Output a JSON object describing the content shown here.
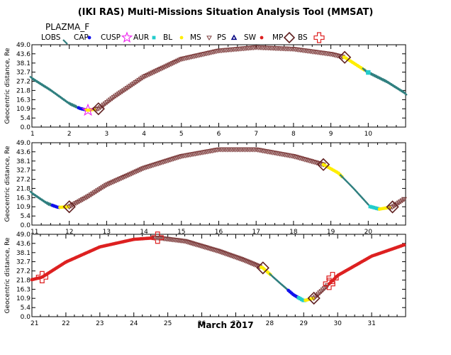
{
  "chart_data": {
    "title": "(IKI RAS) Multi-Missions Situation Analysis Tool (MMSAT)",
    "subtitle": "PLAZMA_F",
    "xlabel": "March 2017",
    "ylabel": "Geocentric distance, Re",
    "yticks": [
      "0.0",
      "5.4",
      "10.9",
      "16.3",
      "21.8",
      "27.2",
      "32.7",
      "38.1",
      "43.6",
      "49.0"
    ],
    "ylim": [
      0,
      49
    ],
    "legend": [
      {
        "label": "LOBS",
        "symbol": "diag",
        "color": "#2f7f7f"
      },
      {
        "label": "CAP",
        "symbol": "dot",
        "color": "#1010ee"
      },
      {
        "label": "CUSP",
        "symbol": "star",
        "color": "#ee22ee"
      },
      {
        "label": "AUR",
        "symbol": "square",
        "color": "#22cccc"
      },
      {
        "label": "BL",
        "symbol": "dot",
        "color": "#ffee00"
      },
      {
        "label": "MS",
        "symbol": "triangle-down",
        "color": "#804040"
      },
      {
        "label": "PS",
        "symbol": "triangle-up",
        "color": "#000080"
      },
      {
        "label": "SW",
        "symbol": "dot",
        "color": "#dd2020"
      },
      {
        "label": "MP",
        "symbol": "diamond",
        "color": "#602020"
      },
      {
        "label": "BS",
        "symbol": "cross",
        "color": "#dd2020"
      }
    ],
    "panels": [
      {
        "type": "scatter",
        "xlim": [
          1,
          11
        ],
        "xticks": [
          "1",
          "2",
          "3",
          "4",
          "5",
          "6",
          "7",
          "8",
          "9",
          "10"
        ],
        "segments": [
          {
            "region": "LOBS",
            "x0": 1.0,
            "x1": 2.25
          },
          {
            "region": "CAP",
            "x0": 2.25,
            "x1": 2.45
          },
          {
            "region": "BL",
            "x0": 2.45,
            "x1": 2.7
          },
          {
            "region": "MS",
            "x0": 2.7,
            "x1": 9.35
          },
          {
            "region": "BL",
            "x0": 9.35,
            "x1": 9.9
          },
          {
            "region": "LOBS",
            "x0": 9.9,
            "x1": 11.0
          }
        ],
        "markers": [
          {
            "type": "CUSP",
            "x": 2.5,
            "y": 10.0
          },
          {
            "type": "MP",
            "x": 2.78,
            "y": 10.9
          },
          {
            "type": "MP",
            "x": 9.37,
            "y": 41.5
          },
          {
            "type": "AUR",
            "x": 10.0,
            "y": 32.5
          }
        ]
      },
      {
        "type": "scatter",
        "xlim": [
          11,
          21
        ],
        "xticks": [
          "11",
          "12",
          "13",
          "14",
          "15",
          "16",
          "17",
          "18",
          "19",
          "20"
        ],
        "segments": [
          {
            "region": "LOBS",
            "x0": 11.0,
            "x1": 11.55
          },
          {
            "region": "CAP",
            "x0": 11.55,
            "x1": 11.75
          },
          {
            "region": "BL",
            "x0": 11.75,
            "x1": 12.0
          },
          {
            "region": "MS",
            "x0": 12.0,
            "x1": 18.8
          },
          {
            "region": "BL",
            "x0": 18.8,
            "x1": 19.3
          },
          {
            "region": "LOBS",
            "x0": 19.3,
            "x1": 20.05
          },
          {
            "region": "AUR",
            "x0": 20.05,
            "x1": 20.3
          },
          {
            "region": "BL",
            "x0": 20.3,
            "x1": 20.6
          },
          {
            "region": "MS",
            "x0": 20.6,
            "x1": 21.0
          }
        ],
        "markers": [
          {
            "type": "MP",
            "x": 12.0,
            "y": 10.9
          },
          {
            "type": "MP",
            "x": 18.8,
            "y": 36.0
          },
          {
            "type": "MP",
            "x": 20.65,
            "y": 10.8
          }
        ]
      },
      {
        "type": "scatter",
        "xlim": [
          21,
          32
        ],
        "xticks": [
          "21",
          "22",
          "23",
          "24",
          "25",
          "26",
          "27",
          "28",
          "29",
          "30",
          "31"
        ],
        "segments": [
          {
            "region": "SW",
            "x0": 21.0,
            "x1": 24.6
          },
          {
            "region": "MS",
            "x0": 24.6,
            "x1": 27.75
          },
          {
            "region": "BL",
            "x0": 27.75,
            "x1": 28.05
          },
          {
            "region": "LOBS",
            "x0": 28.05,
            "x1": 28.55
          },
          {
            "region": "CAP",
            "x0": 28.55,
            "x1": 28.85
          },
          {
            "region": "AUR",
            "x0": 28.85,
            "x1": 29.05
          },
          {
            "region": "BL",
            "x0": 29.05,
            "x1": 29.3
          },
          {
            "region": "MS",
            "x0": 29.3,
            "x1": 29.75
          },
          {
            "region": "SW",
            "x0": 29.75,
            "x1": 32.0
          }
        ],
        "markers": [
          {
            "type": "BS",
            "x": 21.3,
            "y": 23.5
          },
          {
            "type": "BS",
            "x": 24.7,
            "y": 47.0
          },
          {
            "type": "MP",
            "x": 27.8,
            "y": 29.0
          },
          {
            "type": "MP",
            "x": 29.3,
            "y": 11.0
          },
          {
            "type": "BS",
            "x": 29.75,
            "y": 19.5
          },
          {
            "type": "BS",
            "x": 29.85,
            "y": 23.0
          }
        ]
      }
    ]
  }
}
